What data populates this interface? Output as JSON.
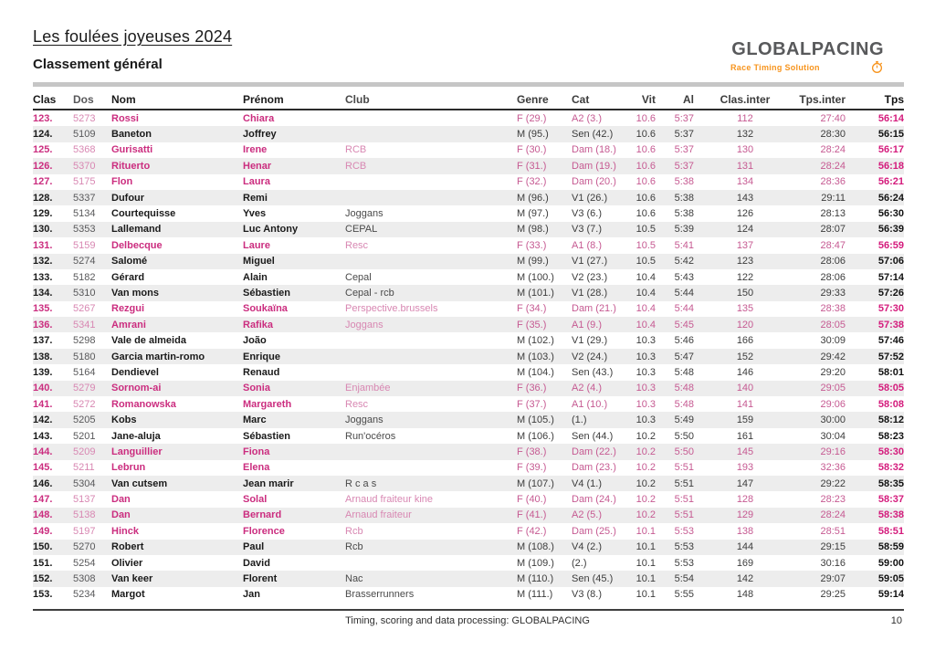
{
  "page": {
    "title": "Les foulées joyeuses 2024",
    "subtitle": "Classement général",
    "footer_text": "Timing, scoring and data processing: GLOBALPACING",
    "page_number": "10"
  },
  "logo": {
    "name": "GLOBALPACING",
    "tagline": "Race Timing Solution",
    "icon": "stopwatch-icon",
    "brand_orange": "#f7941d",
    "brand_gray": "#58595b"
  },
  "colors": {
    "female_accent": "#cb2d7f",
    "female_light": "#d887b2",
    "female_time": "#d41b7c",
    "row_stripe": "#ededed"
  },
  "table": {
    "columns": [
      "Clas",
      "Dos",
      "Nom",
      "Prénom",
      "Club",
      "Genre",
      "Cat",
      "Vit",
      "Al",
      "Clas.inter",
      "Tps.inter",
      "Tps"
    ],
    "row_fields": [
      "clas",
      "dos",
      "nom",
      "prenom",
      "club",
      "genre",
      "cat",
      "vit",
      "al",
      "clas_inter",
      "tps_inter",
      "tps",
      "female"
    ],
    "rows": [
      [
        "123.",
        "5273",
        "Rossi",
        "Chiara",
        "",
        "F (29.)",
        "A2 (3.)",
        "10.6",
        "5:37",
        "112",
        "27:40",
        "56:14",
        true
      ],
      [
        "124.",
        "5109",
        "Baneton",
        "Joffrey",
        "",
        "M (95.)",
        "Sen (42.)",
        "10.6",
        "5:37",
        "132",
        "28:30",
        "56:15",
        false
      ],
      [
        "125.",
        "5368",
        "Gurisatti",
        "Irene",
        "RCB",
        "F (30.)",
        "Dam (18.)",
        "10.6",
        "5:37",
        "130",
        "28:24",
        "56:17",
        true
      ],
      [
        "126.",
        "5370",
        "Rituerto",
        "Henar",
        "RCB",
        "F (31.)",
        "Dam (19.)",
        "10.6",
        "5:37",
        "131",
        "28:24",
        "56:18",
        true
      ],
      [
        "127.",
        "5175",
        "Flon",
        "Laura",
        "",
        "F (32.)",
        "Dam (20.)",
        "10.6",
        "5:38",
        "134",
        "28:36",
        "56:21",
        true
      ],
      [
        "128.",
        "5337",
        "Dufour",
        "Remi",
        "",
        "M (96.)",
        "V1 (26.)",
        "10.6",
        "5:38",
        "143",
        "29:11",
        "56:24",
        false
      ],
      [
        "129.",
        "5134",
        "Courtequisse",
        "Yves",
        "Joggans",
        "M (97.)",
        "V3 (6.)",
        "10.6",
        "5:38",
        "126",
        "28:13",
        "56:30",
        false
      ],
      [
        "130.",
        "5353",
        "Lallemand",
        "Luc Antony",
        "CEPAL",
        "M (98.)",
        "V3 (7.)",
        "10.5",
        "5:39",
        "124",
        "28:07",
        "56:39",
        false
      ],
      [
        "131.",
        "5159",
        "Delbecque",
        "Laure",
        "Resc",
        "F (33.)",
        "A1 (8.)",
        "10.5",
        "5:41",
        "137",
        "28:47",
        "56:59",
        true
      ],
      [
        "132.",
        "5274",
        "Salomé",
        "Miguel",
        "",
        "M (99.)",
        "V1 (27.)",
        "10.5",
        "5:42",
        "123",
        "28:06",
        "57:06",
        false
      ],
      [
        "133.",
        "5182",
        "Gérard",
        "Alain",
        "Cepal",
        "M (100.)",
        "V2 (23.)",
        "10.4",
        "5:43",
        "122",
        "28:06",
        "57:14",
        false
      ],
      [
        "134.",
        "5310",
        "Van mons",
        "Sébastien",
        "Cepal - rcb",
        "M (101.)",
        "V1 (28.)",
        "10.4",
        "5:44",
        "150",
        "29:33",
        "57:26",
        false
      ],
      [
        "135.",
        "5267",
        "Rezgui",
        "Soukaïna",
        "Perspective.brussels",
        "F (34.)",
        "Dam (21.)",
        "10.4",
        "5:44",
        "135",
        "28:38",
        "57:30",
        true
      ],
      [
        "136.",
        "5341",
        "Amrani",
        "Rafika",
        "Joggans",
        "F (35.)",
        "A1 (9.)",
        "10.4",
        "5:45",
        "120",
        "28:05",
        "57:38",
        true
      ],
      [
        "137.",
        "5298",
        "Vale de almeida",
        "João",
        "",
        "M (102.)",
        "V1 (29.)",
        "10.3",
        "5:46",
        "166",
        "30:09",
        "57:46",
        false
      ],
      [
        "138.",
        "5180",
        "Garcia martin-romo",
        "Enrique",
        "",
        "M (103.)",
        "V2 (24.)",
        "10.3",
        "5:47",
        "152",
        "29:42",
        "57:52",
        false
      ],
      [
        "139.",
        "5164",
        "Dendievel",
        "Renaud",
        "",
        "M (104.)",
        "Sen (43.)",
        "10.3",
        "5:48",
        "146",
        "29:20",
        "58:01",
        false
      ],
      [
        "140.",
        "5279",
        "Sornom-ai",
        "Sonia",
        "Enjambée",
        "F (36.)",
        "A2 (4.)",
        "10.3",
        "5:48",
        "140",
        "29:05",
        "58:05",
        true
      ],
      [
        "141.",
        "5272",
        "Romanowska",
        "Margareth",
        "Resc",
        "F (37.)",
        "A1 (10.)",
        "10.3",
        "5:48",
        "141",
        "29:06",
        "58:08",
        true
      ],
      [
        "142.",
        "5205",
        "Kobs",
        "Marc",
        "Joggans",
        "M (105.)",
        "(1.)",
        "10.3",
        "5:49",
        "159",
        "30:00",
        "58:12",
        false
      ],
      [
        "143.",
        "5201",
        "Jane-aluja",
        "Sébastien",
        "Run'océros",
        "M (106.)",
        "Sen (44.)",
        "10.2",
        "5:50",
        "161",
        "30:04",
        "58:23",
        false
      ],
      [
        "144.",
        "5209",
        "Languillier",
        "Fiona",
        "",
        "F (38.)",
        "Dam (22.)",
        "10.2",
        "5:50",
        "145",
        "29:16",
        "58:30",
        true
      ],
      [
        "145.",
        "5211",
        "Lebrun",
        "Elena",
        "",
        "F (39.)",
        "Dam (23.)",
        "10.2",
        "5:51",
        "193",
        "32:36",
        "58:32",
        true
      ],
      [
        "146.",
        "5304",
        "Van cutsem",
        "Jean marir",
        "R c a s",
        "M (107.)",
        "V4 (1.)",
        "10.2",
        "5:51",
        "147",
        "29:22",
        "58:35",
        false
      ],
      [
        "147.",
        "5137",
        "Dan",
        "Solal",
        "Arnaud fraiteur kine",
        "F (40.)",
        "Dam (24.)",
        "10.2",
        "5:51",
        "128",
        "28:23",
        "58:37",
        true
      ],
      [
        "148.",
        "5138",
        "Dan",
        "Bernard",
        "Arnaud fraiteur",
        "F (41.)",
        "A2 (5.)",
        "10.2",
        "5:51",
        "129",
        "28:24",
        "58:38",
        true
      ],
      [
        "149.",
        "5197",
        "Hinck",
        "Florence",
        "Rcb",
        "F (42.)",
        "Dam (25.)",
        "10.1",
        "5:53",
        "138",
        "28:51",
        "58:51",
        true
      ],
      [
        "150.",
        "5270",
        "Robert",
        "Paul",
        "Rcb",
        "M (108.)",
        "V4 (2.)",
        "10.1",
        "5:53",
        "144",
        "29:15",
        "58:59",
        false
      ],
      [
        "151.",
        "5254",
        "Olivier",
        "David",
        "",
        "M (109.)",
        "(2.)",
        "10.1",
        "5:53",
        "169",
        "30:16",
        "59:00",
        false
      ],
      [
        "152.",
        "5308",
        "Van keer",
        "Florent",
        "Nac",
        "M (110.)",
        "Sen (45.)",
        "10.1",
        "5:54",
        "142",
        "29:07",
        "59:05",
        false
      ],
      [
        "153.",
        "5234",
        "Margot",
        "Jan",
        "Brasserrunners",
        "M (111.)",
        "V3 (8.)",
        "10.1",
        "5:55",
        "148",
        "29:25",
        "59:14",
        false
      ]
    ]
  }
}
